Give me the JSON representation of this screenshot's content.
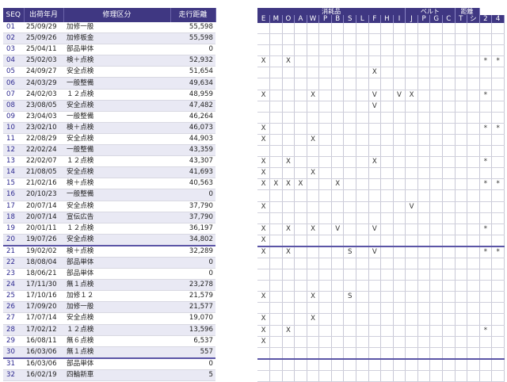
{
  "left_headers": [
    "SEQ",
    "出荷年月",
    "修理区分",
    "走行距離"
  ],
  "group_headers": [
    {
      "label": "消耗品",
      "span": 12
    },
    {
      "label": "ベルト",
      "span": 4
    },
    {
      "label": "距離",
      "span": 2
    }
  ],
  "code_headers": [
    "E",
    "M",
    "O",
    "A",
    "W",
    "P",
    "B",
    "S",
    "L",
    "F",
    "H",
    "I",
    "J",
    "P",
    "G",
    "C",
    "T",
    "シ",
    "2",
    "4"
  ],
  "rows": [
    {
      "seq": "01",
      "date": "25/09/29",
      "category": "加修一般",
      "distance": "55,598",
      "marks": [
        "",
        "",
        "",
        "",
        "",
        "",
        "",
        "",
        "",
        "",
        "",
        "",
        "",
        "",
        "",
        "",
        "",
        "",
        "",
        ""
      ]
    },
    {
      "seq": "02",
      "date": "25/09/26",
      "category": "加修板金",
      "distance": "55,598",
      "marks": [
        "",
        "",
        "",
        "",
        "",
        "",
        "",
        "",
        "",
        "",
        "",
        "",
        "",
        "",
        "",
        "",
        "",
        "",
        "",
        ""
      ]
    },
    {
      "seq": "03",
      "date": "25/04/11",
      "category": "部品単体",
      "distance": "0",
      "marks": [
        "",
        "",
        "",
        "",
        "",
        "",
        "",
        "",
        "",
        "",
        "",
        "",
        "",
        "",
        "",
        "",
        "",
        "",
        "",
        ""
      ]
    },
    {
      "seq": "04",
      "date": "25/02/03",
      "category": "検＋点検",
      "distance": "52,932",
      "marks": [
        "X",
        "",
        "X",
        "",
        "",
        "",
        "",
        "",
        "",
        "",
        "",
        "",
        "",
        "",
        "",
        "",
        "",
        "",
        "*",
        "*"
      ]
    },
    {
      "seq": "05",
      "date": "24/09/27",
      "category": "安全点検",
      "distance": "51,654",
      "marks": [
        "",
        "",
        "",
        "",
        "",
        "",
        "",
        "",
        "",
        "X",
        "",
        "",
        "",
        "",
        "",
        "",
        "",
        "",
        "",
        ""
      ]
    },
    {
      "seq": "06",
      "date": "24/03/29",
      "category": "一般整備",
      "distance": "49,634",
      "marks": [
        "",
        "",
        "",
        "",
        "",
        "",
        "",
        "",
        "",
        "",
        "",
        "",
        "",
        "",
        "",
        "",
        "",
        "",
        "",
        ""
      ]
    },
    {
      "seq": "07",
      "date": "24/02/03",
      "category": "１２点検",
      "distance": "48,959",
      "marks": [
        "X",
        "",
        "",
        "",
        "X",
        "",
        "",
        "",
        "",
        "V",
        "",
        "V",
        "X",
        "",
        "",
        "",
        "",
        "",
        "*",
        ""
      ]
    },
    {
      "seq": "08",
      "date": "23/08/05",
      "category": "安全点検",
      "distance": "47,482",
      "marks": [
        "",
        "",
        "",
        "",
        "",
        "",
        "",
        "",
        "",
        "V",
        "",
        "",
        "",
        "",
        "",
        "",
        "",
        "",
        "",
        ""
      ]
    },
    {
      "seq": "09",
      "date": "23/04/03",
      "category": "一般整備",
      "distance": "46,264",
      "marks": [
        "",
        "",
        "",
        "",
        "",
        "",
        "",
        "",
        "",
        "",
        "",
        "",
        "",
        "",
        "",
        "",
        "",
        "",
        "",
        ""
      ]
    },
    {
      "seq": "10",
      "date": "23/02/10",
      "category": "検＋点検",
      "distance": "46,073",
      "marks": [
        "X",
        "",
        "",
        "",
        "",
        "",
        "",
        "",
        "",
        "",
        "",
        "",
        "",
        "",
        "",
        "",
        "",
        "",
        "*",
        "*"
      ]
    },
    {
      "seq": "11",
      "date": "22/08/29",
      "category": "安全点検",
      "distance": "44,903",
      "marks": [
        "X",
        "",
        "",
        "",
        "X",
        "",
        "",
        "",
        "",
        "",
        "",
        "",
        "",
        "",
        "",
        "",
        "",
        "",
        "",
        ""
      ]
    },
    {
      "seq": "12",
      "date": "22/02/24",
      "category": "一般整備",
      "distance": "43,359",
      "marks": [
        "",
        "",
        "",
        "",
        "",
        "",
        "",
        "",
        "",
        "",
        "",
        "",
        "",
        "",
        "",
        "",
        "",
        "",
        "",
        ""
      ]
    },
    {
      "seq": "13",
      "date": "22/02/07",
      "category": "１２点検",
      "distance": "43,307",
      "marks": [
        "X",
        "",
        "X",
        "",
        "",
        "",
        "",
        "",
        "",
        "X",
        "",
        "",
        "",
        "",
        "",
        "",
        "",
        "",
        "*",
        ""
      ]
    },
    {
      "seq": "14",
      "date": "21/08/05",
      "category": "安全点検",
      "distance": "41,693",
      "marks": [
        "X",
        "",
        "",
        "",
        "X",
        "",
        "",
        "",
        "",
        "",
        "",
        "",
        "",
        "",
        "",
        "",
        "",
        "",
        "",
        ""
      ]
    },
    {
      "seq": "15",
      "date": "21/02/16",
      "category": "検＋点検",
      "distance": "40,563",
      "marks": [
        "X",
        "X",
        "X",
        "X",
        "",
        "",
        "X",
        "",
        "",
        "",
        "",
        "",
        "",
        "",
        "",
        "",
        "",
        "",
        "*",
        "*"
      ]
    },
    {
      "seq": "16",
      "date": "20/10/23",
      "category": "一般整備",
      "distance": "0",
      "marks": [
        "",
        "",
        "",
        "",
        "",
        "",
        "",
        "",
        "",
        "",
        "",
        "",
        "",
        "",
        "",
        "",
        "",
        "",
        "",
        ""
      ]
    },
    {
      "seq": "17",
      "date": "20/07/14",
      "category": "安全点検",
      "distance": "37,790",
      "marks": [
        "X",
        "",
        "",
        "",
        "",
        "",
        "",
        "",
        "",
        "",
        "",
        "",
        "V",
        "",
        "",
        "",
        "",
        "",
        "",
        ""
      ]
    },
    {
      "seq": "18",
      "date": "20/07/14",
      "category": "宣伝広告",
      "distance": "37,790",
      "marks": [
        "",
        "",
        "",
        "",
        "",
        "",
        "",
        "",
        "",
        "",
        "",
        "",
        "",
        "",
        "",
        "",
        "",
        "",
        "",
        ""
      ]
    },
    {
      "seq": "19",
      "date": "20/01/11",
      "category": "１２点検",
      "distance": "36,197",
      "marks": [
        "X",
        "",
        "X",
        "",
        "X",
        "",
        "V",
        "",
        "",
        "V",
        "",
        "",
        "",
        "",
        "",
        "",
        "",
        "",
        "*",
        ""
      ]
    },
    {
      "seq": "20",
      "date": "19/07/26",
      "category": "安全点検",
      "distance": "34,802",
      "marks": [
        "X",
        "",
        "",
        "",
        "",
        "",
        "",
        "",
        "",
        "",
        "",
        "",
        "",
        "",
        "",
        "",
        "",
        "",
        "",
        ""
      ]
    },
    {
      "seq": "21",
      "date": "19/02/02",
      "category": "検＋点検",
      "distance": "32,289",
      "marks": [
        "X",
        "",
        "X",
        "",
        "",
        "",
        "",
        "S",
        "",
        "V",
        "",
        "",
        "",
        "",
        "",
        "",
        "",
        "",
        "*",
        "*"
      ]
    },
    {
      "seq": "22",
      "date": "18/08/04",
      "category": "部品単体",
      "distance": "0",
      "marks": [
        "",
        "",
        "",
        "",
        "",
        "",
        "",
        "",
        "",
        "",
        "",
        "",
        "",
        "",
        "",
        "",
        "",
        "",
        "",
        ""
      ]
    },
    {
      "seq": "23",
      "date": "18/06/21",
      "category": "部品単体",
      "distance": "0",
      "marks": [
        "",
        "",
        "",
        "",
        "",
        "",
        "",
        "",
        "",
        "",
        "",
        "",
        "",
        "",
        "",
        "",
        "",
        "",
        "",
        ""
      ]
    },
    {
      "seq": "24",
      "date": "17/11/30",
      "category": "無１点検",
      "distance": "23,278",
      "marks": [
        "",
        "",
        "",
        "",
        "",
        "",
        "",
        "",
        "",
        "",
        "",
        "",
        "",
        "",
        "",
        "",
        "",
        "",
        "",
        ""
      ]
    },
    {
      "seq": "25",
      "date": "17/10/16",
      "category": "加修１２",
      "distance": "21,579",
      "marks": [
        "X",
        "",
        "",
        "",
        "X",
        "",
        "",
        "S",
        "",
        "",
        "",
        "",
        "",
        "",
        "",
        "",
        "",
        "",
        "",
        ""
      ]
    },
    {
      "seq": "26",
      "date": "17/09/20",
      "category": "加修一般",
      "distance": "21,577",
      "marks": [
        "",
        "",
        "",
        "",
        "",
        "",
        "",
        "",
        "",
        "",
        "",
        "",
        "",
        "",
        "",
        "",
        "",
        "",
        "",
        ""
      ]
    },
    {
      "seq": "27",
      "date": "17/07/14",
      "category": "安全点検",
      "distance": "19,070",
      "marks": [
        "X",
        "",
        "",
        "",
        "X",
        "",
        "",
        "",
        "",
        "",
        "",
        "",
        "",
        "",
        "",
        "",
        "",
        "",
        "",
        ""
      ]
    },
    {
      "seq": "28",
      "date": "17/02/12",
      "category": "１２点検",
      "distance": "13,596",
      "marks": [
        "X",
        "",
        "X",
        "",
        "",
        "",
        "",
        "",
        "",
        "",
        "",
        "",
        "",
        "",
        "",
        "",
        "",
        "",
        "*",
        ""
      ]
    },
    {
      "seq": "29",
      "date": "16/08/11",
      "category": "無６点検",
      "distance": "6,537",
      "marks": [
        "X",
        "",
        "",
        "",
        "",
        "",
        "",
        "",
        "",
        "",
        "",
        "",
        "",
        "",
        "",
        "",
        "",
        "",
        "",
        ""
      ]
    },
    {
      "seq": "30",
      "date": "16/03/06",
      "category": "無１点検",
      "distance": "557",
      "marks": [
        "",
        "",
        "",
        "",
        "",
        "",
        "",
        "",
        "",
        "",
        "",
        "",
        "",
        "",
        "",
        "",
        "",
        "",
        "",
        ""
      ]
    },
    {
      "seq": "31",
      "date": "16/03/06",
      "category": "部品単体",
      "distance": "0",
      "marks": [
        "",
        "",
        "",
        "",
        "",
        "",
        "",
        "",
        "",
        "",
        "",
        "",
        "",
        "",
        "",
        "",
        "",
        "",
        "",
        ""
      ]
    },
    {
      "seq": "32",
      "date": "16/02/19",
      "category": "四輪新車",
      "distance": "5",
      "marks": [
        "",
        "",
        "",
        "",
        "",
        "",
        "",
        "",
        "",
        "",
        "",
        "",
        "",
        "",
        "",
        "",
        "",
        "",
        "",
        ""
      ]
    }
  ]
}
